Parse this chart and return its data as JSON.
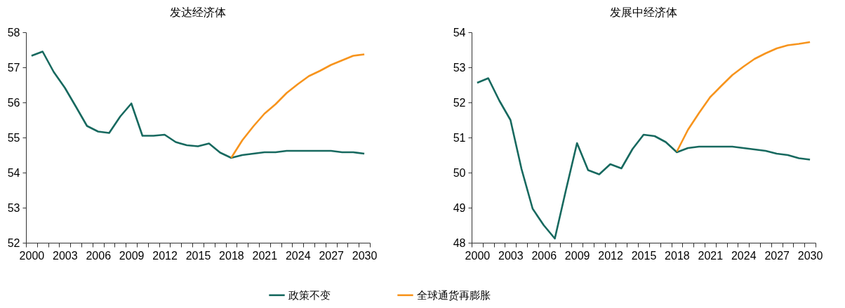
{
  "chart_data": [
    {
      "type": "line",
      "title": "发达经济体",
      "categories": [
        "2000",
        null,
        null,
        "2003",
        null,
        null,
        "2006",
        null,
        null,
        "2009",
        null,
        null,
        "2012",
        null,
        null,
        "2015",
        null,
        null,
        "2018",
        null,
        null,
        "2021",
        null,
        null,
        "2024",
        null,
        null,
        "2027",
        null,
        null,
        "2030"
      ],
      "series": [
        {
          "name": "政策不变",
          "color": "#17695f",
          "values": [
            57.33,
            57.45,
            56.87,
            56.42,
            55.88,
            55.33,
            55.17,
            55.13,
            55.6,
            55.97,
            55.05,
            55.05,
            55.08,
            54.87,
            54.78,
            54.75,
            54.83,
            54.57,
            54.42,
            54.5,
            54.54,
            54.58,
            54.58,
            54.62,
            54.62,
            54.62,
            54.62,
            54.62,
            54.58,
            54.58,
            54.54
          ]
        },
        {
          "name": "全球通货再膨胀",
          "color": "#f7941d",
          "values": [
            null,
            null,
            null,
            null,
            null,
            null,
            null,
            null,
            null,
            null,
            null,
            null,
            null,
            null,
            null,
            null,
            null,
            null,
            54.42,
            54.92,
            55.32,
            55.68,
            55.95,
            56.27,
            56.52,
            56.75,
            56.9,
            57.07,
            57.2,
            57.33,
            57.37
          ]
        }
      ],
      "ylim": [
        52,
        58
      ],
      "yticks": [
        52,
        53,
        54,
        55,
        56,
        57,
        58
      ],
      "grid": false,
      "legend": "bottom",
      "marker": "none",
      "line_style": "solid"
    },
    {
      "type": "line",
      "title": "发展中经济体",
      "categories": [
        "2000",
        null,
        null,
        "2003",
        null,
        null,
        "2006",
        null,
        null,
        "2009",
        null,
        null,
        "2012",
        null,
        null,
        "2015",
        null,
        null,
        "2018",
        null,
        null,
        "2021",
        null,
        null,
        "2024",
        null,
        null,
        "2027",
        null,
        null,
        "2030"
      ],
      "series": [
        {
          "name": "政策不变",
          "color": "#17695f",
          "values": [
            52.56,
            52.69,
            52.05,
            51.5,
            50.1,
            48.97,
            48.5,
            48.12,
            49.5,
            50.84,
            50.07,
            49.95,
            50.24,
            50.12,
            50.67,
            51.08,
            51.04,
            50.87,
            50.58,
            50.7,
            50.74,
            50.74,
            50.74,
            50.74,
            50.7,
            50.66,
            50.62,
            50.54,
            50.5,
            50.41,
            50.37
          ]
        },
        {
          "name": "全球通货再膨胀",
          "color": "#f7941d",
          "values": [
            null,
            null,
            null,
            null,
            null,
            null,
            null,
            null,
            null,
            null,
            null,
            null,
            null,
            null,
            null,
            null,
            null,
            null,
            50.6,
            51.22,
            51.7,
            52.15,
            52.47,
            52.78,
            53.02,
            53.24,
            53.4,
            53.54,
            53.63,
            53.67,
            53.72
          ]
        }
      ],
      "ylim": [
        48,
        54
      ],
      "yticks": [
        48,
        49,
        50,
        51,
        52,
        53,
        54
      ],
      "grid": false,
      "legend": "bottom",
      "marker": "none",
      "line_style": "solid"
    }
  ]
}
